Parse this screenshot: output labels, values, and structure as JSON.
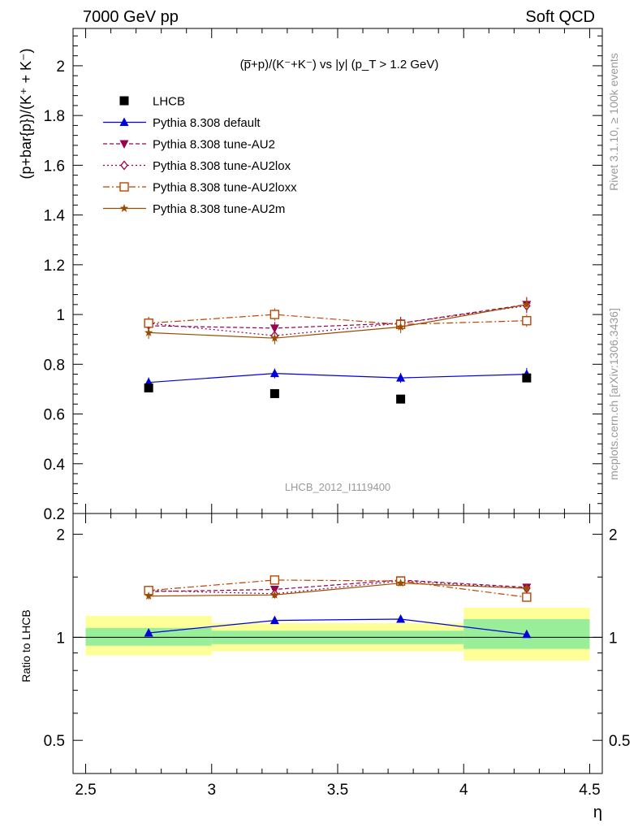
{
  "header": {
    "left": "7000 GeV pp",
    "right": "Soft QCD"
  },
  "side_labels": {
    "top": "Rivet 3.1.10, ≥ 100k events",
    "bottom": "mcplots.cern.ch [arXiv:1306.3436]"
  },
  "chart_data": [
    {
      "type": "line",
      "title": "(p̅+p)/(K⁻+K⁻) vs |y| (p_T > 1.2 GeV)",
      "ylabel": "(p+bar{p})/(K⁺ + K⁻)",
      "watermark": "LHCB_2012_I1119400",
      "ylim": [
        0.2,
        2.15
      ],
      "xlim": [
        2.5,
        4.5
      ],
      "yticks": [
        0.2,
        0.4,
        0.6,
        0.8,
        1,
        1.2,
        1.4,
        1.6,
        1.8,
        2
      ],
      "ytick_labels": [
        "0.2",
        "0.4",
        "0.6",
        "0.8",
        "1",
        "1.2",
        "1.4",
        "1.6",
        "1.8",
        "2"
      ],
      "grid": false,
      "legend_position": "top-left",
      "x": [
        2.75,
        3.25,
        3.75,
        4.25
      ],
      "data": {
        "name": "LHCB",
        "values": [
          0.705,
          0.682,
          0.66,
          0.745
        ],
        "marker": "square",
        "color": "#000000"
      },
      "series": [
        {
          "name": "Pythia 8.308 default",
          "values": [
            0.727,
            0.763,
            0.745,
            0.76
          ],
          "err": [
            0.02,
            0.02,
            0.02,
            0.025
          ],
          "color": "#0000dd",
          "marker": "triangle-up",
          "dash": "solid"
        },
        {
          "name": "Pythia 8.308 tune-AU2",
          "values": [
            0.955,
            0.945,
            0.965,
            1.04
          ],
          "err": [
            0.025,
            0.025,
            0.025,
            0.03
          ],
          "color": "#99004d",
          "marker": "triangle-down",
          "dash": "dash"
        },
        {
          "name": "Pythia 8.308 tune-AU2lox",
          "values": [
            0.965,
            0.915,
            0.965,
            1.035
          ],
          "err": [
            0.025,
            0.025,
            0.025,
            0.03
          ],
          "color": "#99004d",
          "marker": "diamond-open",
          "dash": "dot"
        },
        {
          "name": "Pythia 8.308 tune-AU2loxx",
          "values": [
            0.965,
            1.0,
            0.96,
            0.975
          ],
          "err": [
            0.025,
            0.025,
            0.025,
            0.025
          ],
          "color": "#bb4400",
          "marker": "square-open",
          "dash": "dashdot"
        },
        {
          "name": "Pythia 8.308 tune-AU2m",
          "values": [
            0.927,
            0.905,
            0.95,
            1.04
          ],
          "err": [
            0.025,
            0.025,
            0.025,
            0.03
          ],
          "color": "#994d00",
          "marker": "star",
          "dash": "solid"
        }
      ]
    },
    {
      "type": "line",
      "ylabel": "Ratio to LHCB",
      "xlabel": "η",
      "scale": "log",
      "ylim": [
        0.4,
        2.3
      ],
      "yticks": [
        0.5,
        1,
        2
      ],
      "ytick_labels": [
        "0.5",
        "1",
        "2"
      ],
      "xticks": [
        2.5,
        3,
        3.5,
        4,
        4.5
      ],
      "xtick_labels": [
        "2.5",
        "3",
        "3.5",
        "4",
        "4.5"
      ],
      "bands": [
        {
          "x0": 2.5,
          "x1": 3.0,
          "yellow": [
            0.885,
            1.155
          ],
          "green": [
            0.945,
            1.065
          ]
        },
        {
          "x0": 3.0,
          "x1": 3.5,
          "yellow": [
            0.91,
            1.1
          ],
          "green": [
            0.955,
            1.045
          ]
        },
        {
          "x0": 3.5,
          "x1": 4.0,
          "yellow": [
            0.91,
            1.1
          ],
          "green": [
            0.955,
            1.045
          ]
        },
        {
          "x0": 4.0,
          "x1": 4.5,
          "yellow": [
            0.855,
            1.22
          ],
          "green": [
            0.925,
            1.13
          ]
        }
      ],
      "x": [
        2.75,
        3.25,
        3.75,
        4.25
      ],
      "series": [
        {
          "name": "Pythia 8.308 default",
          "values": [
            1.03,
            1.12,
            1.13,
            1.02
          ],
          "err": [
            0.02,
            0.02,
            0.02,
            0.02
          ],
          "color": "#0000dd",
          "marker": "triangle-up",
          "dash": "solid"
        },
        {
          "name": "Pythia 8.308 tune-AU2",
          "values": [
            1.36,
            1.38,
            1.47,
            1.4
          ],
          "err": [
            0.03,
            0.03,
            0.03,
            0.03
          ],
          "color": "#99004d",
          "marker": "triangle-down",
          "dash": "dash"
        },
        {
          "name": "Pythia 8.308 tune-AU2lox",
          "values": [
            1.37,
            1.34,
            1.46,
            1.39
          ],
          "err": [
            0.03,
            0.03,
            0.03,
            0.03
          ],
          "color": "#99004d",
          "marker": "diamond-open",
          "dash": "dot"
        },
        {
          "name": "Pythia 8.308 tune-AU2loxx",
          "values": [
            1.37,
            1.47,
            1.46,
            1.31
          ],
          "err": [
            0.03,
            0.03,
            0.03,
            0.03
          ],
          "color": "#bb4400",
          "marker": "square-open",
          "dash": "dashdot"
        },
        {
          "name": "Pythia 8.308 tune-AU2m",
          "values": [
            1.32,
            1.33,
            1.44,
            1.39
          ],
          "err": [
            0.03,
            0.03,
            0.03,
            0.03
          ],
          "color": "#994d00",
          "marker": "star",
          "dash": "solid"
        }
      ]
    }
  ]
}
